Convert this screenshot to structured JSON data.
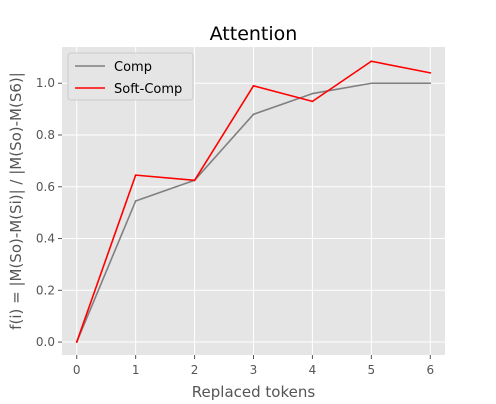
{
  "chart_data": {
    "type": "line",
    "title": "Attention",
    "xlabel": "Replaced tokens",
    "ylabel": "f(i) = |M(So)-M(Si)| / |M(So)-M(S6)|",
    "x": [
      0,
      1,
      2,
      3,
      4,
      5,
      6
    ],
    "xlim": [
      -0.25,
      6.25
    ],
    "ylim": [
      -0.05,
      1.14
    ],
    "xticks": [
      "0",
      "1",
      "2",
      "3",
      "4",
      "5",
      "6"
    ],
    "yticks": [
      "0.0",
      "0.2",
      "0.4",
      "0.6",
      "0.8",
      "1.0"
    ],
    "grid": true,
    "legend_position": "top-left",
    "series": [
      {
        "name": "Comp",
        "color": "#808080",
        "values": [
          0.0,
          0.545,
          0.625,
          0.88,
          0.96,
          1.0,
          1.0
        ]
      },
      {
        "name": "Soft-Comp",
        "color": "#ff0000",
        "values": [
          0.0,
          0.645,
          0.625,
          0.99,
          0.93,
          1.085,
          1.04
        ]
      }
    ]
  },
  "colors": {
    "plot_background": "#e5e5e5",
    "grid": "#ffffff",
    "text": "#000000",
    "tick_text": "#555555"
  }
}
